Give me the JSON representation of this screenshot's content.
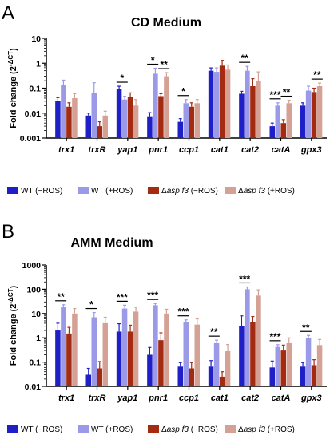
{
  "chart_data": [
    {
      "type": "bar",
      "panel_label": "A",
      "title": "CD Medium",
      "ylabel": "Fold change (2^-ΔCT)",
      "yscale": "log",
      "ylim": [
        0.001,
        10
      ],
      "yticks": [
        "10",
        "1",
        "0.1",
        "0.01",
        "0.001"
      ],
      "categories": [
        "trx1",
        "trxR",
        "yap1",
        "pnr1",
        "ccp1",
        "cat1",
        "cat2",
        "catA",
        "gpx3"
      ],
      "series": [
        {
          "name": "WT (−ROS)",
          "values": [
            0.03,
            0.008,
            0.09,
            0.0075,
            0.0045,
            0.5,
            0.06,
            0.003,
            0.02
          ],
          "errors": [
            0.012,
            0.002,
            0.03,
            0.003,
            0.0015,
            0.15,
            0.015,
            0.001,
            0.006
          ]
        },
        {
          "name": "WT (+ROS)",
          "values": [
            0.13,
            0.065,
            0.035,
            0.38,
            0.025,
            0.45,
            0.5,
            0.02,
            0.08
          ],
          "errors": [
            0.08,
            0.1,
            0.012,
            0.25,
            0.01,
            0.2,
            0.25,
            0.006,
            0.04
          ]
        },
        {
          "name": "Δasp f3 (−ROS)",
          "values": [
            0.018,
            0.003,
            0.045,
            0.048,
            0.018,
            0.8,
            0.12,
            0.004,
            0.07
          ],
          "errors": [
            0.008,
            0.0015,
            0.02,
            0.012,
            0.008,
            0.5,
            0.12,
            0.0015,
            0.03
          ]
        },
        {
          "name": "Δasp f3 (+ROS)",
          "values": [
            0.04,
            0.008,
            0.02,
            0.3,
            0.025,
            0.55,
            0.2,
            0.025,
            0.12
          ],
          "errors": [
            0.02,
            0.004,
            0.015,
            0.12,
            0.01,
            0.3,
            0.25,
            0.008,
            0.04
          ]
        }
      ],
      "significance": [
        {
          "category": "yap1",
          "from": 0,
          "to": 1,
          "label": "*"
        },
        {
          "category": "pnr1",
          "from": 0,
          "to": 1,
          "label": "*"
        },
        {
          "category": "pnr1",
          "from": 2,
          "to": 3,
          "label": "**"
        },
        {
          "category": "ccp1",
          "from": 0,
          "to": 1,
          "label": "*"
        },
        {
          "category": "cat2",
          "from": 0,
          "to": 1,
          "label": "**"
        },
        {
          "category": "catA",
          "from": 0,
          "to": 1,
          "label": "***"
        },
        {
          "category": "catA",
          "from": 2,
          "to": 3,
          "label": "**"
        },
        {
          "category": "gpx3",
          "from": 2,
          "to": 3,
          "label": "**"
        }
      ],
      "colors": [
        "#1f1fc8",
        "#9a9ae8",
        "#a32b12",
        "#d4a194"
      ]
    },
    {
      "type": "bar",
      "panel_label": "B",
      "title": "AMM Medium",
      "ylabel": "Fold change (2^-ΔCT)",
      "yscale": "log",
      "ylim": [
        0.01,
        1000
      ],
      "yticks": [
        "1000",
        "100",
        "10",
        "1",
        "0.1",
        "0.01"
      ],
      "categories": [
        "trx1",
        "trxR",
        "yap1",
        "pnr1",
        "ccp1",
        "cat1",
        "cat2",
        "catA",
        "gpx3"
      ],
      "series": [
        {
          "name": "WT (−ROS)",
          "values": [
            2.0,
            0.03,
            1.8,
            0.2,
            0.065,
            0.065,
            3.0,
            0.06,
            0.065
          ],
          "errors": [
            2.0,
            0.025,
            2.0,
            0.2,
            0.03,
            0.05,
            5.0,
            0.05,
            0.03
          ]
        },
        {
          "name": "WT (+ROS)",
          "values": [
            18,
            7,
            16,
            22,
            4.5,
            0.6,
            100,
            0.42,
            1.0
          ],
          "errors": [
            5,
            4,
            6,
            4,
            1,
            0.2,
            25,
            0.1,
            0.25
          ]
        },
        {
          "name": "Δasp f3 (−ROS)",
          "values": [
            1.5,
            0.055,
            1.8,
            0.8,
            0.055,
            0.025,
            4.5,
            0.3,
            0.075
          ],
          "errors": [
            1.2,
            0.05,
            1.5,
            0.8,
            0.04,
            0.015,
            3.0,
            0.2,
            0.05
          ]
        },
        {
          "name": "Δasp f3 (+ROS)",
          "values": [
            10,
            4.0,
            12,
            10,
            3.5,
            0.28,
            55,
            0.6,
            0.5
          ],
          "errors": [
            6,
            3,
            6,
            5,
            2.5,
            0.25,
            40,
            0.4,
            0.35
          ]
        }
      ],
      "significance": [
        {
          "category": "trx1",
          "from": 0,
          "to": 1,
          "label": "**"
        },
        {
          "category": "trxR",
          "from": 0,
          "to": 1,
          "label": "*"
        },
        {
          "category": "yap1",
          "from": 0,
          "to": 1,
          "label": "***"
        },
        {
          "category": "pnr1",
          "from": 0,
          "to": 1,
          "label": "***"
        },
        {
          "category": "ccp1",
          "from": 0,
          "to": 1,
          "label": "***"
        },
        {
          "category": "cat1",
          "from": 0,
          "to": 1,
          "label": "**"
        },
        {
          "category": "cat2",
          "from": 0,
          "to": 1,
          "label": "***"
        },
        {
          "category": "catA",
          "from": 0,
          "to": 1,
          "label": "***"
        },
        {
          "category": "gpx3",
          "from": 0,
          "to": 1,
          "label": "**"
        }
      ],
      "colors": [
        "#1f1fc8",
        "#9a9ae8",
        "#a32b12",
        "#d4a194"
      ]
    }
  ]
}
